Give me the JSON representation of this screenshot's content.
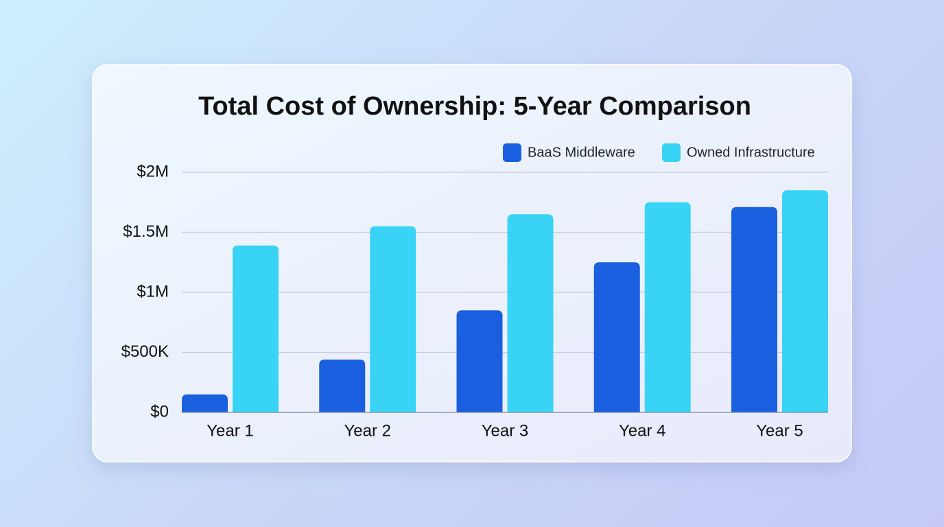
{
  "chart_data": {
    "type": "bar",
    "title": "Total Cost of Ownership: 5-Year Comparison",
    "categories": [
      "Year 1",
      "Year 2",
      "Year 3",
      "Year 4",
      "Year 5"
    ],
    "series": [
      {
        "name": "BaaS Middleware",
        "color": "#1a5fe0",
        "values": [
          150000,
          440000,
          850000,
          1250000,
          1710000
        ]
      },
      {
        "name": "Owned Infrastructure",
        "color": "#38d3f5",
        "values": [
          1390000,
          1550000,
          1650000,
          1750000,
          1850000
        ]
      }
    ],
    "ylim": [
      0,
      2000000
    ],
    "yticks": [
      {
        "value": 0,
        "label": "$0"
      },
      {
        "value": 500000,
        "label": "$500K"
      },
      {
        "value": 1000000,
        "label": "$1M"
      },
      {
        "value": 1500000,
        "label": "$1.5M"
      },
      {
        "value": 2000000,
        "label": "$2M"
      }
    ],
    "grid": true,
    "legend": "top-right"
  }
}
